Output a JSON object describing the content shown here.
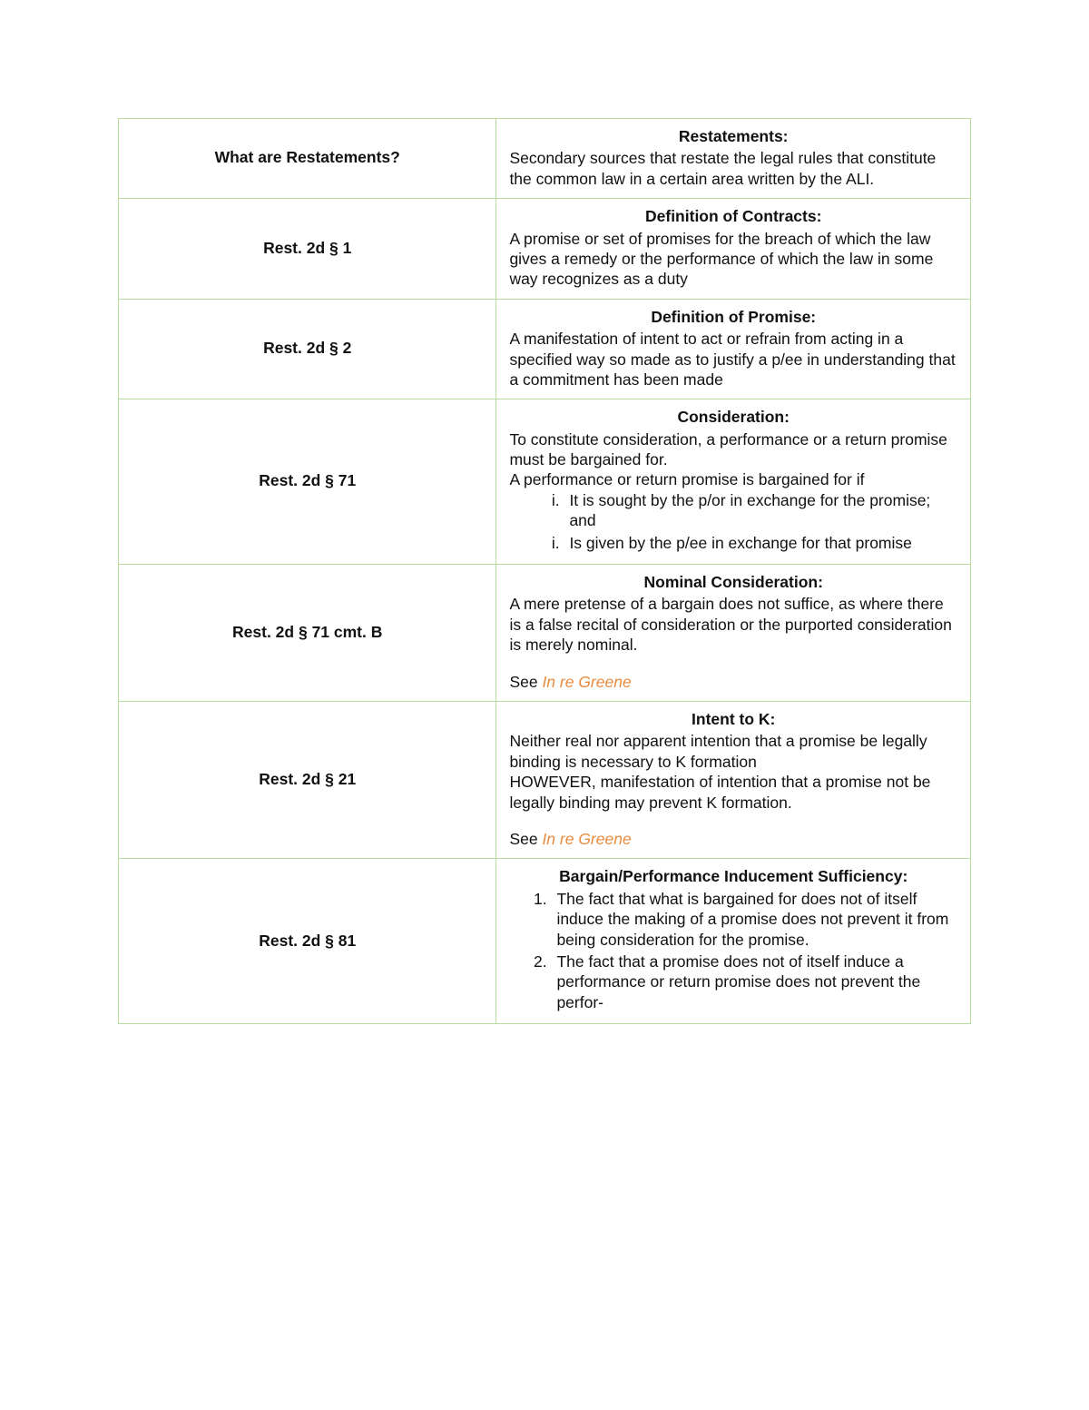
{
  "colors": {
    "border": "#b7dca0",
    "text": "#111111",
    "link": "#e88b3e",
    "background": "#ffffff"
  },
  "typography": {
    "font_family": "Verdana, Geneva, sans-serif",
    "body_fontsize_pt": 13,
    "bold_weight": 700,
    "line_height": 1.28
  },
  "table": {
    "columns": [
      "term",
      "definition"
    ],
    "col_widths_pct": [
      44,
      56
    ]
  },
  "rows": [
    {
      "term": "What are Restatements?",
      "title": "Restatements:",
      "body": "Secondary sources that restate the legal rules that constitute the common law in a certain area written by the ALI."
    },
    {
      "term": "Rest. 2d § 1",
      "title": "Definition of Contracts:",
      "body": "A promise or set of promises for the breach of which the law gives a remedy or the perfor­mance of which the law in some way recog­nizes as a duty"
    },
    {
      "term": "Rest. 2d § 2",
      "title": "Definition of Promise:",
      "body": "A manifestation of intent to act or refrain from acting in a specified way so made as to justify a p/ee in understanding that a commit­ment has been made"
    },
    {
      "term": "Rest. 2d § 71",
      "title": "Consideration:",
      "body": "To constitute consideration, a performance or a return promise must be bargained for.",
      "body2": "A performance or return promise is bargained for if",
      "list_i": "It is sought by the p/or in exchange for the promise; and",
      "list_ii": "Is given by the p/ee in exchange for that promise"
    },
    {
      "term": "Rest. 2d § 71 cmt. B",
      "title": "Nominal Consideration:",
      "body": "A mere pretense of a bargain does not suf­fice, as where there is a false recital of con­sideration or the purported consideration is merely nominal.",
      "see_prefix": "See ",
      "see_case": "In re Greene"
    },
    {
      "term": "Rest. 2d § 21",
      "title": "Intent to K:",
      "body": "Neither real nor apparent intention that a promise be legally binding is necessary to K formation",
      "body2": "HOWEVER, manifestation of intention that a promise not be legally binding may prevent K formation.",
      "see_prefix": "See ",
      "see_case": "In re Greene"
    },
    {
      "term": "Rest. 2d § 81",
      "title": "Bargain/Performance Inducement Suffi­ciency:",
      "list_1": "The fact that what is bargained for does not of itself induce the making of a promise does not prevent it from be­ing consideration for the promise.",
      "list_2": "The fact that a promise does not of it­self induce a performance or return promise does not prevent the perfor-"
    }
  ]
}
